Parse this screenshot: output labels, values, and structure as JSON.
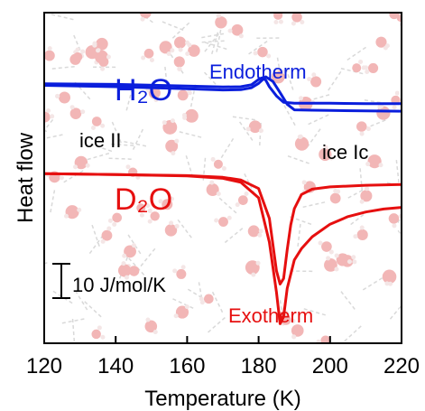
{
  "chart_data": {
    "type": "line",
    "xlabel": "Temperature (K)",
    "ylabel": "Heat flow",
    "xlim": [
      120,
      220
    ],
    "ylim": [
      0,
      100
    ],
    "xticks": [
      120,
      140,
      160,
      180,
      200,
      220
    ],
    "xtick_labels": [
      "120",
      "140",
      "160",
      "180",
      "200",
      "220"
    ],
    "grid": false,
    "annotations": {
      "h2o": "H₂O",
      "d2o": "D₂O",
      "endotherm": "Endotherm",
      "exotherm": "Exotherm",
      "ice_ii": "ice II",
      "ice_ic": "ice Ic",
      "scale_bar": "10 J/mol/K"
    },
    "colors": {
      "h2o": "#0a1edc",
      "d2o": "#e60f0f",
      "axis": "#000000"
    },
    "series": [
      {
        "group": "h2o",
        "x": [
          120,
          140,
          160,
          170,
          175,
          178,
          180,
          181,
          182,
          183,
          185,
          187,
          190,
          195,
          200,
          210,
          220
        ],
        "y": [
          78.5,
          78.3,
          77.8,
          77.5,
          77.6,
          78.2,
          79.8,
          80.3,
          79.6,
          77.6,
          74.8,
          72.9,
          72.6,
          72.6,
          72.6,
          72.5,
          72.5
        ]
      },
      {
        "group": "h2o",
        "x": [
          120,
          140,
          160,
          170,
          175,
          178,
          180,
          182,
          184,
          186,
          188,
          190,
          195,
          200,
          210,
          220
        ],
        "y": [
          78.0,
          77.6,
          77.0,
          76.6,
          76.7,
          77.3,
          78.6,
          80.6,
          79.2,
          75.8,
          72.3,
          70.6,
          70.5,
          70.4,
          70.3,
          70.2
        ]
      },
      {
        "group": "d2o",
        "x": [
          120,
          140,
          160,
          170,
          175,
          180,
          183,
          185,
          186,
          187,
          188,
          189,
          190,
          192,
          195,
          200,
          210,
          220
        ],
        "y": [
          51.3,
          51.0,
          50.7,
          50.2,
          49.4,
          46.8,
          37.8,
          21.9,
          17.9,
          19.6,
          28.3,
          35.8,
          40.7,
          45.0,
          46.6,
          47.3,
          47.8,
          48.0
        ]
      },
      {
        "group": "d2o",
        "x": [
          120,
          140,
          160,
          170,
          175,
          180,
          183,
          185,
          186,
          187,
          188,
          190,
          192,
          195,
          200,
          205,
          210,
          215,
          220
        ],
        "y": [
          51.3,
          51.0,
          50.6,
          49.9,
          48.7,
          44.0,
          30.6,
          15.4,
          5.9,
          8.0,
          16.6,
          25.2,
          28.6,
          32.2,
          36.0,
          38.3,
          39.7,
          40.6,
          41.1
        ]
      }
    ]
  }
}
